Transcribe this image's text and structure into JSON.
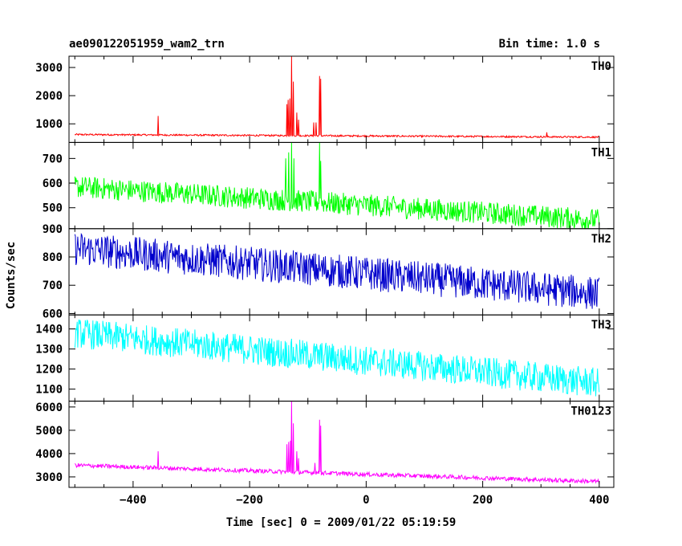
{
  "chart_data": {
    "type": "line",
    "title": "ae090122051959_wam2_trn",
    "bin_time_label": "Bin time: 1.0 s",
    "xlabel": "Time [sec] 0 = 2009/01/22 05:19:59",
    "ylabel": "Counts/sec",
    "xlim": [
      -510,
      425
    ],
    "x_ticks": [
      -400,
      -200,
      0,
      200,
      400
    ],
    "x_tick_labels": [
      "−400",
      "−200",
      "0",
      "200",
      "400"
    ],
    "panels": [
      {
        "name": "TH0",
        "color": "#ff0000",
        "ylim": [
          340,
          3400
        ],
        "y_ticks": [
          1000,
          2000,
          3000
        ],
        "baseline": {
          "x": [
            -500,
            400
          ],
          "y": [
            620,
            530
          ]
        },
        "noise_amplitude": 30,
        "spikes": [
          {
            "x": -357,
            "y": 1280
          },
          {
            "x": -136,
            "y": 1700
          },
          {
            "x": -134,
            "y": 1850
          },
          {
            "x": -131,
            "y": 1900
          },
          {
            "x": -128,
            "y": 3400
          },
          {
            "x": -125,
            "y": 2500
          },
          {
            "x": -119,
            "y": 1400
          },
          {
            "x": -116,
            "y": 1150
          },
          {
            "x": -90,
            "y": 1050
          },
          {
            "x": -86,
            "y": 1050
          },
          {
            "x": -80,
            "y": 2700
          },
          {
            "x": -78,
            "y": 2600
          },
          {
            "x": 310,
            "y": 700
          }
        ]
      },
      {
        "name": "TH1",
        "color": "#00ff00",
        "ylim": [
          415,
          765
        ],
        "y_ticks": [
          500,
          600,
          700
        ],
        "baseline": {
          "x": [
            -500,
            400
          ],
          "y": [
            585,
            450
          ]
        },
        "noise_amplitude": 45,
        "spikes": [
          {
            "x": -138,
            "y": 700
          },
          {
            "x": -133,
            "y": 725
          },
          {
            "x": -128,
            "y": 765
          },
          {
            "x": -124,
            "y": 700
          },
          {
            "x": -80,
            "y": 765
          },
          {
            "x": -78,
            "y": 690
          }
        ]
      },
      {
        "name": "TH2",
        "color": "#0000cc",
        "ylim": [
          595,
          900
        ],
        "y_ticks": [
          600,
          700,
          800,
          900
        ],
        "baseline": {
          "x": [
            -500,
            400
          ],
          "y": [
            830,
            670
          ]
        },
        "noise_amplitude": 60,
        "spikes": []
      },
      {
        "name": "TH3",
        "color": "#00ffff",
        "ylim": [
          1040,
          1470
        ],
        "y_ticks": [
          1100,
          1200,
          1300,
          1400
        ],
        "baseline": {
          "x": [
            -500,
            400
          ],
          "y": [
            1380,
            1130
          ]
        },
        "noise_amplitude": 75,
        "spikes": []
      },
      {
        "name": "TH0123",
        "color": "#ff00ff",
        "ylim": [
          2550,
          6250
        ],
        "y_ticks": [
          3000,
          4000,
          5000,
          6000
        ],
        "baseline": {
          "x": [
            -500,
            400
          ],
          "y": [
            3500,
            2800
          ]
        },
        "noise_amplitude": 90,
        "spikes": [
          {
            "x": -357,
            "y": 4100
          },
          {
            "x": -136,
            "y": 4400
          },
          {
            "x": -133,
            "y": 4500
          },
          {
            "x": -130,
            "y": 4550
          },
          {
            "x": -128,
            "y": 6250
          },
          {
            "x": -125,
            "y": 5300
          },
          {
            "x": -119,
            "y": 4100
          },
          {
            "x": -116,
            "y": 3800
          },
          {
            "x": -88,
            "y": 3600
          },
          {
            "x": -80,
            "y": 5450
          },
          {
            "x": -78,
            "y": 5200
          }
        ]
      }
    ]
  }
}
